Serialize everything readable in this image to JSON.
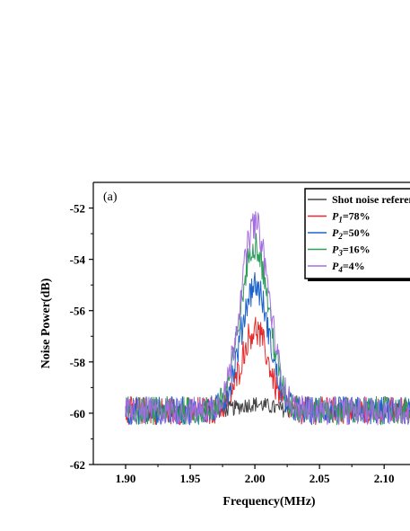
{
  "chart_data": {
    "type": "line",
    "title": "",
    "panel_label": "(a)",
    "xlabel": "Frequency(MHz)",
    "ylabel": "Noise Power(dB)",
    "xlim": [
      1.875,
      2.12
    ],
    "ylim": [
      -62,
      -51
    ],
    "xticks": [
      1.9,
      1.95,
      2.0,
      2.05,
      2.1
    ],
    "xtick_labels": [
      "1.90",
      "1.95",
      "2.00",
      "2.05",
      "2.10"
    ],
    "yticks": [
      -62,
      -60,
      -58,
      -56,
      -54,
      -52
    ],
    "ytick_labels": [
      "-62",
      "-60",
      "-58",
      "-56",
      "-54",
      "-52"
    ],
    "grid": false,
    "legend_position": "top-right",
    "baseline_db": -59.9,
    "peak_center_mhz": 2.0,
    "noise_amplitude_db": 0.55,
    "series": [
      {
        "name": "Shot noise reference",
        "label_text": "Shot noise reference",
        "color": "#444444",
        "peak_db": -59.65,
        "peak_width_mhz": 0.012
      },
      {
        "name": "P1=78%",
        "label_base": "P",
        "label_sub": "1",
        "label_rest": "=78%",
        "color": "#e8292b",
        "peak_db": -56.75,
        "peak_width_mhz": 0.0105
      },
      {
        "name": "P2=50%",
        "label_base": "P",
        "label_sub": "2",
        "label_rest": "=50%",
        "color": "#1e63c9",
        "peak_db": -55.0,
        "peak_width_mhz": 0.0108
      },
      {
        "name": "P3=16%",
        "label_base": "P",
        "label_sub": "3",
        "label_rest": "=16%",
        "color": "#2e9e5a",
        "peak_db": -53.4,
        "peak_width_mhz": 0.011
      },
      {
        "name": "P4=4%",
        "label_base": "P",
        "label_sub": "4",
        "label_rest": "=4%",
        "color": "#a56ee0",
        "peak_db": -52.6,
        "peak_width_mhz": 0.0112
      }
    ]
  }
}
